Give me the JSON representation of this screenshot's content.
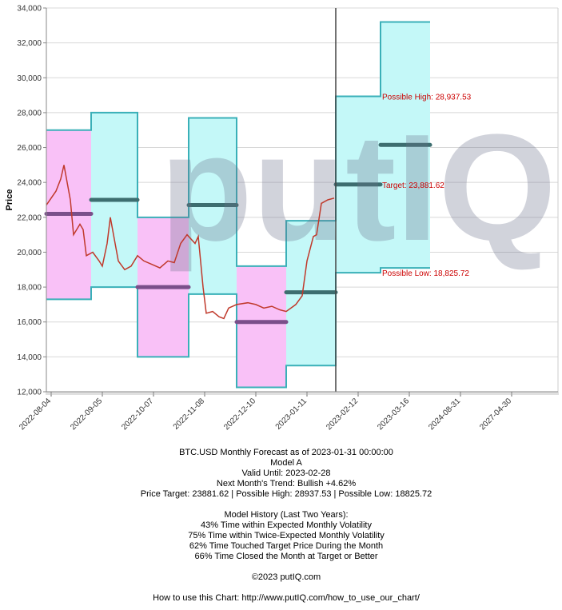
{
  "chart_data": {
    "type": "line",
    "y_label": "Price",
    "watermark": "putIQ",
    "xlim": [
      -3,
      317
    ],
    "xticks": [
      {
        "value": 0,
        "label": "2022-08-04"
      },
      {
        "value": 32,
        "label": "2022-09-05"
      },
      {
        "value": 64,
        "label": "2022-10-07"
      },
      {
        "value": 96,
        "label": "2022-11-08"
      },
      {
        "value": 128,
        "label": "2022-12-10"
      },
      {
        "value": 160,
        "label": "2023-01-11"
      },
      {
        "value": 192,
        "label": "2023-02-12"
      },
      {
        "value": 224,
        "label": "2023-03-16"
      },
      {
        "value": 256,
        "label": "2024-08-31"
      },
      {
        "value": 288,
        "label": "2027-04-30"
      }
    ],
    "ylim": [
      12000,
      34000
    ],
    "yticks": [
      {
        "value": 12000,
        "label": "12,000"
      },
      {
        "value": 14000,
        "label": "14,000"
      },
      {
        "value": 16000,
        "label": "16,000"
      },
      {
        "value": 18000,
        "label": "18,000"
      },
      {
        "value": 20000,
        "label": "20,000"
      },
      {
        "value": 22000,
        "label": "22,000"
      },
      {
        "value": 24000,
        "label": "24,000"
      },
      {
        "value": 26000,
        "label": "26,000"
      },
      {
        "value": 28000,
        "label": "28,000"
      },
      {
        "value": 30000,
        "label": "30,000"
      },
      {
        "value": 32000,
        "label": "32,000"
      },
      {
        "value": 34000,
        "label": "34,000"
      }
    ],
    "grid": true,
    "price": {
      "color": "#c0392b",
      "x": [
        -3,
        3,
        6,
        8,
        12,
        14,
        18,
        20,
        22,
        26,
        30,
        32,
        35,
        37,
        39,
        42,
        46,
        50,
        54,
        58,
        63,
        68,
        73,
        77,
        81,
        85,
        90,
        92,
        95,
        97,
        101,
        105,
        108,
        111,
        116,
        123,
        128,
        133,
        138,
        143,
        147,
        153,
        157,
        160,
        164,
        166,
        169,
        173,
        177
      ],
      "values": [
        22700,
        23500,
        24200,
        25000,
        23000,
        21000,
        21600,
        21300,
        19800,
        20000,
        19500,
        19200,
        20500,
        22000,
        21000,
        19500,
        19000,
        19200,
        19800,
        19500,
        19300,
        19100,
        19500,
        19400,
        20500,
        21000,
        20500,
        20900,
        18000,
        16500,
        16600,
        16300,
        16200,
        16800,
        17000,
        17100,
        17000,
        16800,
        16900,
        16700,
        16600,
        17000,
        17500,
        19500,
        20900,
        21000,
        22800,
        23000,
        23100
      ]
    },
    "bands": [
      {
        "start": -3,
        "end": 25,
        "high": 27000,
        "low": 17300,
        "target": 22200,
        "color": "#f9c1f7",
        "target_color": "#7a4f8a"
      },
      {
        "start": 25,
        "end": 54,
        "high": 28000,
        "low": 18000,
        "target": 23000,
        "color": "#c4f8f8",
        "target_color": "#3d6e70"
      },
      {
        "start": 54,
        "end": 86,
        "high": 22000,
        "low": 14000,
        "target": 18000,
        "color": "#f9c1f7",
        "target_color": "#7a4f8a"
      },
      {
        "start": 86,
        "end": 116,
        "high": 27700,
        "low": 17600,
        "target": 22700,
        "color": "#c4f8f8",
        "target_color": "#3d6e70"
      },
      {
        "start": 116,
        "end": 147,
        "high": 19200,
        "low": 12250,
        "target": 16000,
        "color": "#f9c1f7",
        "target_color": "#7a4f8a"
      },
      {
        "start": 147,
        "end": 178,
        "high": 21800,
        "low": 13500,
        "target": 17700,
        "color": "#c4f8f8",
        "target_color": "#3d6e70"
      },
      {
        "start": 178,
        "end": 206,
        "high": 28937.53,
        "low": 18825.72,
        "target": 23881.62,
        "color": "#c4f8f8",
        "target_color": "#3d6e70"
      },
      {
        "start": 206,
        "end": 237,
        "high": 33200,
        "low": 19100,
        "target": 26150,
        "color": "#c4f8f8",
        "target_color": "#3d6e70"
      }
    ],
    "band_edge_color": "#3ab0b8",
    "forecast_line_x": 178,
    "annotation_color": "#cc0000",
    "annotations": [
      "Possible High: 28,937.53",
      "Target: 23,881.62",
      "Possible Low: 18,825.72"
    ]
  },
  "notes": [
    "BTC.USD Monthly Forecast as of 2023-01-31 00:00:00",
    "Model A",
    "Valid Until: 2023-02-28",
    "Next Month's Trend: Bullish +4.62%",
    "Price Target: 23881.62 | Possible High: 28937.53 | Possible Low: 18825.72",
    "",
    "Model History (Last Two Years):",
    "43% Time within Expected Monthly Volatility",
    "75% Time within Twice-Expected Monthly Volatility",
    "62% Time Touched Target Price During the Month",
    "66% Time Closed the Month at Target or Better",
    "",
    "©2023 putIQ.com",
    "",
    "How to use this Chart: http://www.putIQ.com/how_to_use_our_chart/"
  ]
}
